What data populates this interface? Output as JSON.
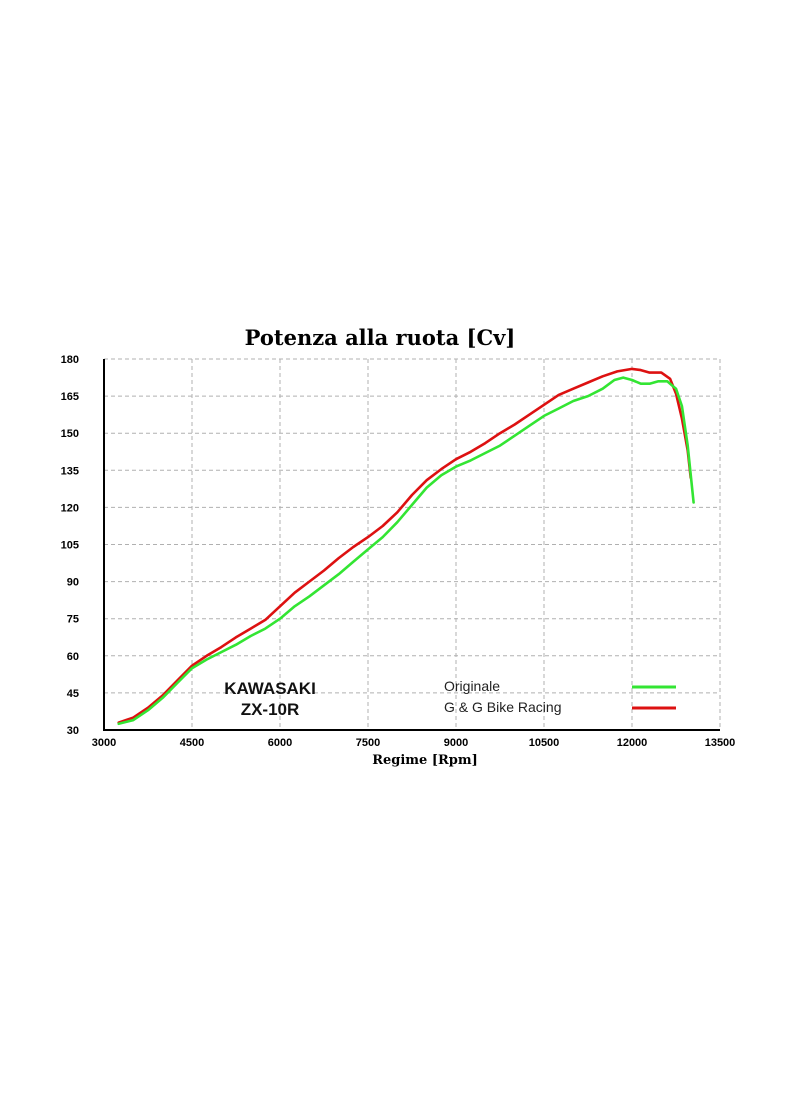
{
  "chart_data": {
    "type": "line",
    "title": "Potenza alla ruota [Cv]",
    "xlabel": "Regime [Rpm]",
    "ylabel": "",
    "xlim": [
      3000,
      13500
    ],
    "ylim": [
      30,
      180
    ],
    "xticks": [
      3000,
      4500,
      6000,
      7500,
      9000,
      10500,
      12000,
      13500
    ],
    "yticks": [
      30,
      45,
      60,
      75,
      90,
      105,
      120,
      135,
      150,
      165,
      180
    ],
    "grid": true,
    "legend_position": "bottom-center",
    "annotations": [
      "KAWASAKI",
      "ZX-10R"
    ],
    "series": [
      {
        "name": "Originale",
        "color": "#33e533",
        "points": [
          [
            3250,
            32.5
          ],
          [
            3500,
            34
          ],
          [
            3750,
            38
          ],
          [
            4000,
            43
          ],
          [
            4250,
            49
          ],
          [
            4500,
            55
          ],
          [
            4750,
            58.5
          ],
          [
            5000,
            61.5
          ],
          [
            5250,
            64.5
          ],
          [
            5500,
            68
          ],
          [
            5750,
            71
          ],
          [
            6000,
            75
          ],
          [
            6250,
            80
          ],
          [
            6500,
            84
          ],
          [
            6750,
            88.5
          ],
          [
            7000,
            93
          ],
          [
            7250,
            98
          ],
          [
            7500,
            103
          ],
          [
            7750,
            108
          ],
          [
            8000,
            114
          ],
          [
            8250,
            121
          ],
          [
            8500,
            128
          ],
          [
            8750,
            133
          ],
          [
            9000,
            136.5
          ],
          [
            9250,
            139
          ],
          [
            9500,
            142
          ],
          [
            9750,
            145
          ],
          [
            10000,
            149
          ],
          [
            10250,
            153
          ],
          [
            10500,
            157
          ],
          [
            10750,
            160
          ],
          [
            11000,
            163
          ],
          [
            11250,
            165
          ],
          [
            11500,
            168
          ],
          [
            11700,
            171.5
          ],
          [
            11850,
            172.5
          ],
          [
            12000,
            171.5
          ],
          [
            12150,
            170
          ],
          [
            12300,
            170
          ],
          [
            12450,
            171
          ],
          [
            12600,
            171
          ],
          [
            12750,
            168
          ],
          [
            12850,
            161
          ],
          [
            12950,
            145
          ],
          [
            13050,
            122
          ]
        ]
      },
      {
        "name": "G & G Bike Racing",
        "color": "#dd1111",
        "points": [
          [
            3250,
            33
          ],
          [
            3500,
            35
          ],
          [
            3750,
            39
          ],
          [
            4000,
            44
          ],
          [
            4250,
            50
          ],
          [
            4500,
            56
          ],
          [
            4750,
            60
          ],
          [
            5000,
            63.5
          ],
          [
            5250,
            67.5
          ],
          [
            5500,
            71
          ],
          [
            5750,
            74.5
          ],
          [
            6000,
            80
          ],
          [
            6250,
            85.5
          ],
          [
            6500,
            90
          ],
          [
            6750,
            94.5
          ],
          [
            7000,
            99.5
          ],
          [
            7250,
            104
          ],
          [
            7500,
            108
          ],
          [
            7750,
            112.5
          ],
          [
            8000,
            118
          ],
          [
            8250,
            125
          ],
          [
            8500,
            131
          ],
          [
            8750,
            135.5
          ],
          [
            9000,
            139.5
          ],
          [
            9250,
            142.5
          ],
          [
            9500,
            146
          ],
          [
            9750,
            150
          ],
          [
            10000,
            153.5
          ],
          [
            10250,
            157.5
          ],
          [
            10500,
            161.5
          ],
          [
            10750,
            165.5
          ],
          [
            11000,
            168
          ],
          [
            11250,
            170.5
          ],
          [
            11500,
            173
          ],
          [
            11750,
            175
          ],
          [
            12000,
            176
          ],
          [
            12150,
            175.5
          ],
          [
            12300,
            174.5
          ],
          [
            12500,
            174.5
          ],
          [
            12650,
            172
          ],
          [
            12750,
            166
          ],
          [
            12850,
            156
          ],
          [
            12950,
            143
          ],
          [
            13000,
            132
          ]
        ]
      }
    ]
  }
}
